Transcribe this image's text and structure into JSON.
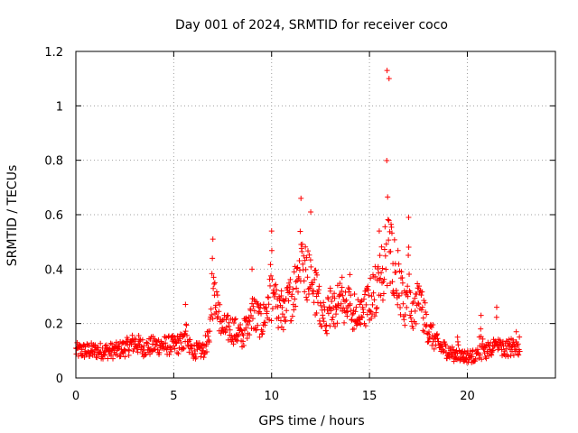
{
  "chart_data": {
    "type": "scatter",
    "title": "Day 001 of 2024, SRMTID for receiver coco",
    "xlabel": "GPS time / hours",
    "ylabel": "SRMTID / TECUs",
    "xlim": [
      0,
      24.5
    ],
    "ylim": [
      0,
      1.2
    ],
    "xticks": [
      0,
      5,
      10,
      15,
      20
    ],
    "xtick_labels": [
      "0",
      "5",
      "10",
      "15",
      "20"
    ],
    "yticks": [
      0,
      0.2,
      0.4,
      0.6,
      0.8,
      1.0,
      1.2
    ],
    "ytick_labels": [
      "0",
      "0.2",
      "0.4",
      "0.6",
      "0.8",
      "1",
      "1.2"
    ],
    "grid": true,
    "marker": "+",
    "series": [
      {
        "name": "SRMTID",
        "color": "#ff0000",
        "profile": [
          [
            0.0,
            0.1
          ],
          [
            0.5,
            0.1
          ],
          [
            1.0,
            0.1
          ],
          [
            1.5,
            0.1
          ],
          [
            2.0,
            0.1
          ],
          [
            2.5,
            0.11
          ],
          [
            3.0,
            0.13
          ],
          [
            3.5,
            0.11
          ],
          [
            4.0,
            0.12
          ],
          [
            4.5,
            0.12
          ],
          [
            5.0,
            0.12
          ],
          [
            5.5,
            0.13
          ],
          [
            6.0,
            0.1
          ],
          [
            6.5,
            0.1
          ],
          [
            6.8,
            0.15
          ],
          [
            7.0,
            0.3
          ],
          [
            7.3,
            0.25
          ],
          [
            7.5,
            0.18
          ],
          [
            8.0,
            0.18
          ],
          [
            8.5,
            0.15
          ],
          [
            9.0,
            0.25
          ],
          [
            9.5,
            0.2
          ],
          [
            10.0,
            0.3
          ],
          [
            10.5,
            0.22
          ],
          [
            11.0,
            0.3
          ],
          [
            11.5,
            0.4
          ],
          [
            12.0,
            0.38
          ],
          [
            12.5,
            0.25
          ],
          [
            13.0,
            0.22
          ],
          [
            13.5,
            0.28
          ],
          [
            14.0,
            0.26
          ],
          [
            14.5,
            0.22
          ],
          [
            15.0,
            0.28
          ],
          [
            15.5,
            0.35
          ],
          [
            16.0,
            0.5
          ],
          [
            16.5,
            0.35
          ],
          [
            17.0,
            0.2
          ],
          [
            17.5,
            0.3
          ],
          [
            18.0,
            0.18
          ],
          [
            18.5,
            0.12
          ],
          [
            19.0,
            0.1
          ],
          [
            19.5,
            0.08
          ],
          [
            20.0,
            0.08
          ],
          [
            20.5,
            0.08
          ],
          [
            21.0,
            0.1
          ],
          [
            21.5,
            0.12
          ],
          [
            22.0,
            0.11
          ],
          [
            22.7,
            0.12
          ]
        ],
        "peaks": [
          [
            5.6,
            0.27
          ],
          [
            7.0,
            0.51
          ],
          [
            7.1,
            0.35
          ],
          [
            9.0,
            0.4
          ],
          [
            10.0,
            0.54
          ],
          [
            10.5,
            0.32
          ],
          [
            11.5,
            0.66
          ],
          [
            12.0,
            0.61
          ],
          [
            12.3,
            0.3
          ],
          [
            13.0,
            0.33
          ],
          [
            13.6,
            0.37
          ],
          [
            14.0,
            0.38
          ],
          [
            14.5,
            0.27
          ],
          [
            15.5,
            0.54
          ],
          [
            15.9,
            1.13
          ],
          [
            16.0,
            1.1
          ],
          [
            16.2,
            0.42
          ],
          [
            17.0,
            0.59
          ],
          [
            17.5,
            0.33
          ],
          [
            19.5,
            0.15
          ],
          [
            20.7,
            0.23
          ],
          [
            21.5,
            0.26
          ],
          [
            22.5,
            0.17
          ]
        ]
      }
    ]
  }
}
